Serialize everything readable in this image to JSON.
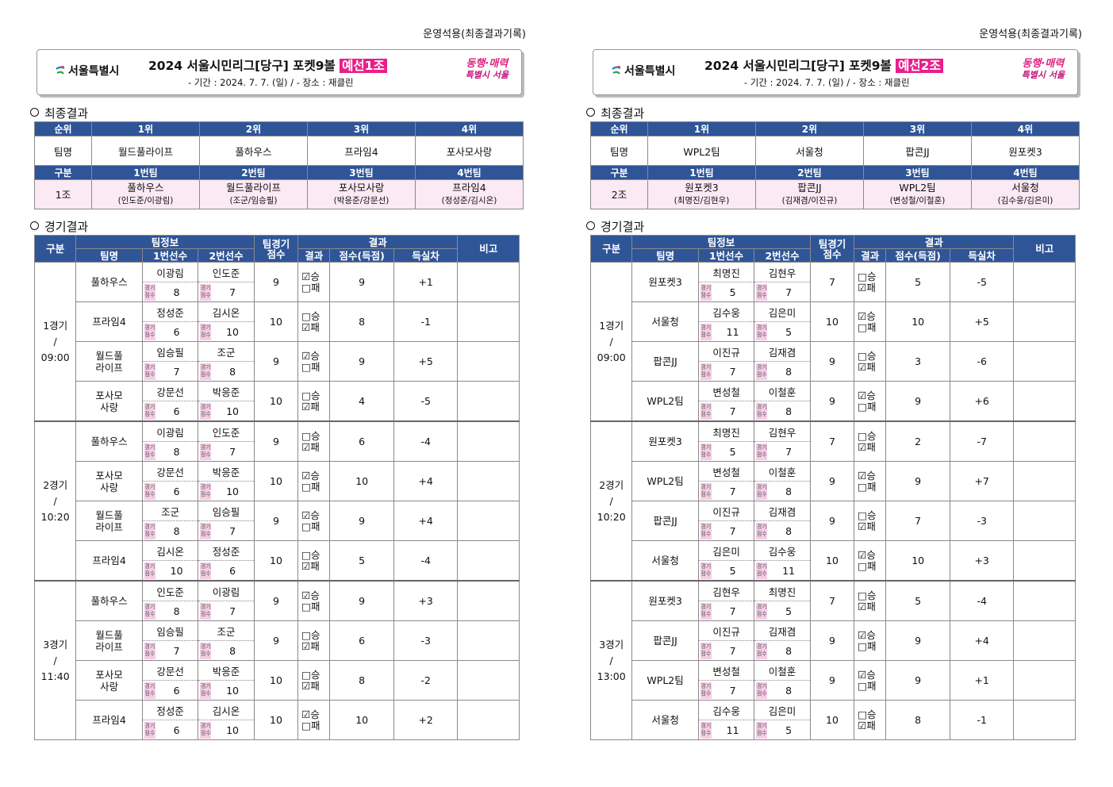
{
  "operator_note": "운영석용(최종결과기록)",
  "logo_text": "서울특별시",
  "slogan": [
    "동행·매력",
    "특별시 서울"
  ],
  "period_line": "-  기간 : 2024. 7. 7. (일)  /  -  장소 : 재클린",
  "labels": {
    "final_results": "최종결과",
    "match_results": "경기결과",
    "rank": "순위",
    "team_name": "팀명",
    "division": "구분",
    "rank1": "1위",
    "rank2": "2위",
    "rank3": "3위",
    "rank4": "4위",
    "team1": "1번팀",
    "team2": "2번팀",
    "team3": "3번팀",
    "team4": "4번팀",
    "team_info": "팀정보",
    "team_score": "팀경기\n점수",
    "result": "결과",
    "note": "비고",
    "team_col": "팀명",
    "player1": "1번선수",
    "player2": "2번선수",
    "outcome": "결과",
    "points": "점수(득점)",
    "diff": "득실차",
    "tag": "경기\n점수",
    "win": "승",
    "loss": "패"
  },
  "groups": [
    {
      "title_main": "2024  서울시민리그[당구]  포켓9볼 ",
      "title_highlight": "예선1조",
      "ranking": [
        "월드풀라이프",
        "풀하우스",
        "프라임4",
        "포사모사랑"
      ],
      "group_label": "1조",
      "draw": [
        {
          "team": "풀하우스",
          "players": "(인도준/이광림)"
        },
        {
          "team": "월드풀라이프",
          "players": "(조군/임승필)"
        },
        {
          "team": "포사모사랑",
          "players": "(박응준/강문선)"
        },
        {
          "team": "프라임4",
          "players": "(정성준/김시온)"
        }
      ],
      "games": [
        {
          "label": "1경기\n/\n09:00",
          "rows": [
            {
              "team": "풀하우스",
              "p1": "이광림",
              "s1": "8",
              "p2": "인도준",
              "s2": "7",
              "score": "9",
              "win": true,
              "pts": "9",
              "diff": "+1"
            },
            {
              "team": "프라임4",
              "p1": "정성준",
              "s1": "6",
              "p2": "김시온",
              "s2": "10",
              "score": "10",
              "win": false,
              "pts": "8",
              "diff": "-1"
            },
            {
              "team": "월드풀\n라이프",
              "p1": "임승필",
              "s1": "7",
              "p2": "조군",
              "s2": "8",
              "score": "9",
              "win": true,
              "pts": "9",
              "diff": "+5"
            },
            {
              "team": "포사모\n사랑",
              "p1": "강문선",
              "s1": "6",
              "p2": "박응준",
              "s2": "10",
              "score": "10",
              "win": false,
              "pts": "4",
              "diff": "-5"
            }
          ]
        },
        {
          "label": "2경기\n/\n10:20",
          "rows": [
            {
              "team": "풀하우스",
              "p1": "이광림",
              "s1": "8",
              "p2": "인도준",
              "s2": "7",
              "score": "9",
              "win": false,
              "pts": "6",
              "diff": "-4"
            },
            {
              "team": "포사모\n사랑",
              "p1": "강문선",
              "s1": "6",
              "p2": "박응준",
              "s2": "10",
              "score": "10",
              "win": true,
              "pts": "10",
              "diff": "+4"
            },
            {
              "team": "월드풀\n라이프",
              "p1": "조군",
              "s1": "8",
              "p2": "임승필",
              "s2": "7",
              "score": "9",
              "win": true,
              "pts": "9",
              "diff": "+4"
            },
            {
              "team": "프라임4",
              "p1": "김시온",
              "s1": "10",
              "p2": "정성준",
              "s2": "6",
              "score": "10",
              "win": false,
              "pts": "5",
              "diff": "-4"
            }
          ]
        },
        {
          "label": "3경기\n/\n11:40",
          "rows": [
            {
              "team": "풀하우스",
              "p1": "인도준",
              "s1": "8",
              "p2": "이광림",
              "s2": "7",
              "score": "9",
              "win": true,
              "pts": "9",
              "diff": "+3"
            },
            {
              "team": "월드풀\n라이프",
              "p1": "임승필",
              "s1": "7",
              "p2": "조군",
              "s2": "8",
              "score": "9",
              "win": false,
              "pts": "6",
              "diff": "-3"
            },
            {
              "team": "포사모\n사랑",
              "p1": "강문선",
              "s1": "6",
              "p2": "박응준",
              "s2": "10",
              "score": "10",
              "win": false,
              "pts": "8",
              "diff": "-2"
            },
            {
              "team": "프라임4",
              "p1": "정성준",
              "s1": "6",
              "p2": "김시온",
              "s2": "10",
              "score": "10",
              "win": true,
              "pts": "10",
              "diff": "+2"
            }
          ]
        }
      ]
    },
    {
      "title_main": "2024  서울시민리그[당구]  포켓9볼 ",
      "title_highlight": "예선2조",
      "ranking": [
        "WPL2팀",
        "서울청",
        "팝콘JJ",
        "원포켓3"
      ],
      "group_label": "2조",
      "draw": [
        {
          "team": "원포켓3",
          "players": "(최명진/김현우)"
        },
        {
          "team": "팝콘JJ",
          "players": "(김재겸/이진규)"
        },
        {
          "team": "WPL2팀",
          "players": "(변성철/이철훈)"
        },
        {
          "team": "서울청",
          "players": "(김수웅/김은미)"
        }
      ],
      "games": [
        {
          "label": "1경기\n/\n09:00",
          "rows": [
            {
              "team": "원포켓3",
              "p1": "최명진",
              "s1": "5",
              "p2": "김현우",
              "s2": "7",
              "score": "7",
              "win": false,
              "pts": "5",
              "diff": "-5"
            },
            {
              "team": "서울청",
              "p1": "김수웅",
              "s1": "11",
              "p2": "김은미",
              "s2": "5",
              "score": "10",
              "win": true,
              "pts": "10",
              "diff": "+5"
            },
            {
              "team": "팝콘JJ",
              "p1": "이진규",
              "s1": "7",
              "p2": "김재겸",
              "s2": "8",
              "score": "9",
              "win": false,
              "pts": "3",
              "diff": "-6"
            },
            {
              "team": "WPL2팀",
              "p1": "변성철",
              "s1": "7",
              "p2": "이철훈",
              "s2": "8",
              "score": "9",
              "win": true,
              "pts": "9",
              "diff": "+6"
            }
          ]
        },
        {
          "label": "2경기\n/\n10:20",
          "rows": [
            {
              "team": "원포켓3",
              "p1": "최명진",
              "s1": "5",
              "p2": "김현우",
              "s2": "7",
              "score": "7",
              "win": false,
              "pts": "2",
              "diff": "-7"
            },
            {
              "team": "WPL2팀",
              "p1": "변성철",
              "s1": "7",
              "p2": "이철훈",
              "s2": "8",
              "score": "9",
              "win": true,
              "pts": "9",
              "diff": "+7"
            },
            {
              "team": "팝콘JJ",
              "p1": "이진규",
              "s1": "7",
              "p2": "김재겸",
              "s2": "8",
              "score": "9",
              "win": false,
              "pts": "7",
              "diff": "-3"
            },
            {
              "team": "서울청",
              "p1": "김은미",
              "s1": "5",
              "p2": "김수웅",
              "s2": "11",
              "score": "10",
              "win": true,
              "pts": "10",
              "diff": "+3"
            }
          ]
        },
        {
          "label": "3경기\n/\n13:00",
          "rows": [
            {
              "team": "원포켓3",
              "p1": "김현우",
              "s1": "7",
              "p2": "최명진",
              "s2": "5",
              "score": "7",
              "win": false,
              "pts": "5",
              "diff": "-4"
            },
            {
              "team": "팝콘JJ",
              "p1": "이진규",
              "s1": "7",
              "p2": "김재겸",
              "s2": "8",
              "score": "9",
              "win": true,
              "pts": "9",
              "diff": "+4"
            },
            {
              "team": "WPL2팀",
              "p1": "변성철",
              "s1": "7",
              "p2": "이철훈",
              "s2": "8",
              "score": "9",
              "win": true,
              "pts": "9",
              "diff": "+1"
            },
            {
              "team": "서울청",
              "p1": "김수웅",
              "s1": "11",
              "p2": "김은미",
              "s2": "5",
              "score": "10",
              "win": false,
              "pts": "8",
              "diff": "-1"
            }
          ]
        }
      ]
    }
  ]
}
